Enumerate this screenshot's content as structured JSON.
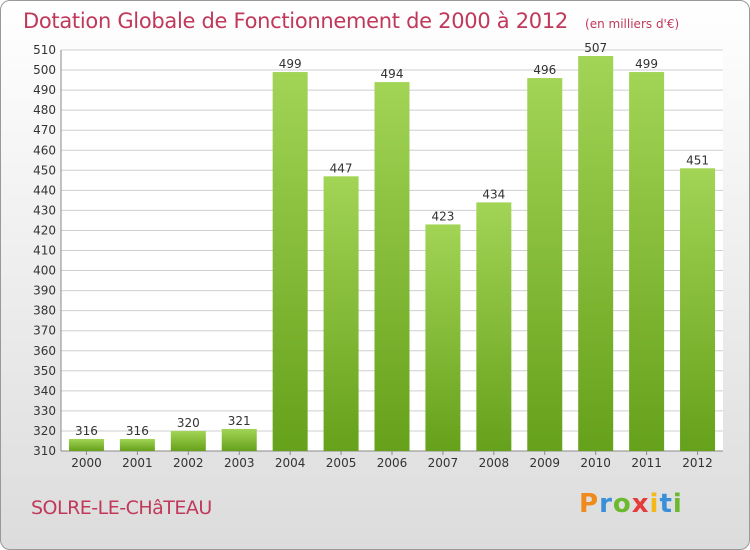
{
  "title": "Dotation Globale de Fonctionnement de 2000 à 2012",
  "unit": "(en milliers d'€)",
  "commune": "SOLRE-LE-CHâTEAU",
  "logo": {
    "letters": [
      "P",
      "r",
      "o",
      "x",
      "i",
      "t",
      "i"
    ],
    "colors": [
      "#f08a1c",
      "#3a8fd8",
      "#6cb82e",
      "#e43b3b",
      "#f5b81b",
      "#3a8fd8",
      "#6cb82e"
    ]
  },
  "colors": {
    "bar_top": "#a2d455",
    "bar_bottom": "#66a11b",
    "axis_text": "#333333",
    "grid": "#cfcfcf"
  },
  "chart_data": {
    "type": "bar",
    "categories": [
      "2000",
      "2001",
      "2002",
      "2003",
      "2004",
      "2005",
      "2006",
      "2007",
      "2008",
      "2009",
      "2010",
      "2011",
      "2012"
    ],
    "values": [
      316,
      316,
      320,
      321,
      499,
      447,
      494,
      423,
      434,
      496,
      507,
      499,
      451
    ],
    "ylim": [
      310,
      510
    ],
    "yticks": [
      310,
      320,
      330,
      340,
      350,
      360,
      370,
      380,
      390,
      400,
      410,
      420,
      430,
      440,
      450,
      460,
      470,
      480,
      490,
      500,
      510
    ],
    "grid": true
  }
}
